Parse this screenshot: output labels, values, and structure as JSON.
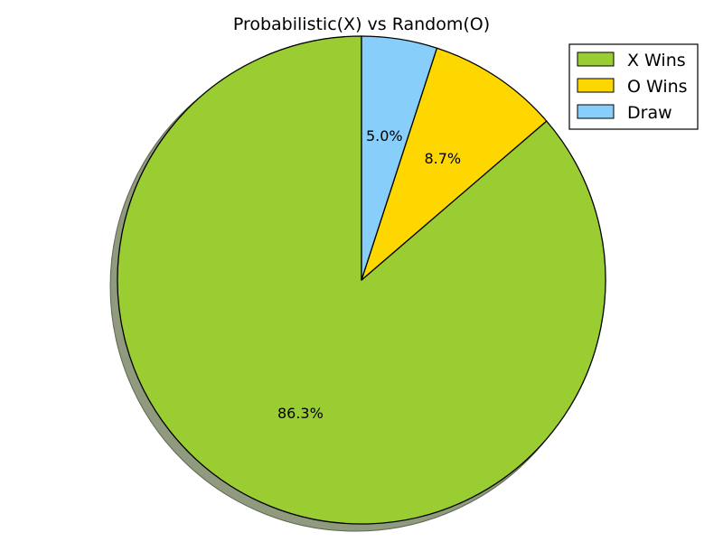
{
  "chart_data": {
    "type": "pie",
    "title": "Probabilistic(X) vs Random(O)",
    "categories": [
      "X Wins",
      "O Wins",
      "Draw"
    ],
    "values": [
      86.3,
      8.7,
      5.0
    ],
    "value_labels": [
      "86.3%",
      "8.7%",
      "5.0%"
    ],
    "colors": [
      "#9acd32",
      "#ffd700",
      "#87cefa"
    ],
    "shadow_color": "#8f9a7f",
    "edge_color": "#000000",
    "start": "top, counter-clockwise",
    "legend": {
      "position": "top-right",
      "entries": [
        "X Wins",
        "O Wins",
        "Draw"
      ]
    }
  }
}
